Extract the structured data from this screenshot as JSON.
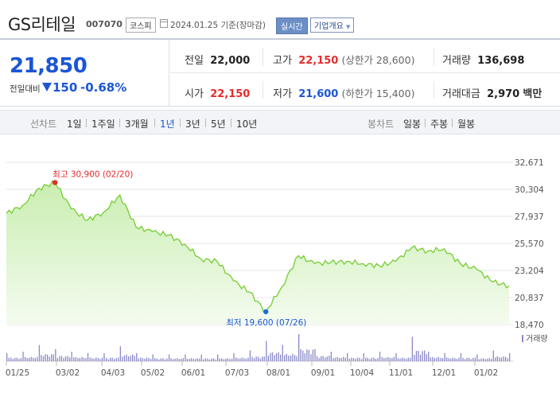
{
  "header": {
    "title": "GS리테일",
    "code": "007070",
    "market": "코스피",
    "as_of": "2024.01.25  기준(장마감)",
    "realtime_label": "실시간",
    "overview_label": "기업개요"
  },
  "price": {
    "current": "21,850",
    "change_label": "전일대비",
    "change_value": "150",
    "change_pct": "-0.68%",
    "prev_label": "전일",
    "prev": "22,000",
    "high_label": "고가",
    "high": "22,150",
    "upper_limit": "(상한가 28,600)",
    "volume_label": "거래량",
    "volume": "136,698",
    "open_label": "시가",
    "open": "22,150",
    "low_label": "저가",
    "low": "21,600",
    "lower_limit": "(하한가 15,400)",
    "amount_label": "거래대금",
    "amount": "2,970",
    "amount_unit": "백만"
  },
  "tabs": {
    "line_label": "선차트",
    "periods": [
      "1일",
      "1주일",
      "3개월",
      "1년",
      "3년",
      "5년",
      "10년"
    ],
    "selected": "1년",
    "candle_label": "봉차트",
    "candles": [
      "일봉",
      "주봉",
      "월봉"
    ]
  },
  "colors": {
    "accent_blue": "#1b55d6",
    "up_red": "#e52b2b",
    "line_green": "#7ccf3c",
    "area_green": "#d7f2c2"
  },
  "chart_data": {
    "type": "area",
    "x_ticks": [
      "01/25",
      "03/02",
      "04/03",
      "05/02",
      "06/01",
      "07/03",
      "08/01",
      "09/01",
      "10/04",
      "11/01",
      "12/01",
      "01/02"
    ],
    "y_ticks": [
      32671,
      30304,
      27937,
      25570,
      23204,
      20837,
      18470
    ],
    "ylim": [
      18470,
      32671
    ],
    "high_annotation": "최고 30,900 (02/20)",
    "low_annotation": "최저 19,600 (07/26)",
    "volume_label": "거래량",
    "x": [
      "01/25",
      "02/05",
      "02/14",
      "02/20",
      "03/02",
      "03/15",
      "03/28",
      "04/03",
      "04/10",
      "04/20",
      "05/02",
      "05/15",
      "06/01",
      "06/15",
      "07/03",
      "07/17",
      "07/26",
      "08/01",
      "08/05",
      "08/20",
      "09/01",
      "09/20",
      "10/04",
      "10/20",
      "11/01",
      "11/10",
      "11/25",
      "12/01",
      "12/15",
      "01/02",
      "01/15",
      "01/25"
    ],
    "values": [
      28200,
      28900,
      30400,
      30900,
      28600,
      27600,
      28300,
      29800,
      27000,
      26600,
      26300,
      25500,
      24200,
      24000,
      22300,
      21300,
      19600,
      21800,
      24500,
      23800,
      23900,
      24000,
      23800,
      23600,
      24000,
      25200,
      24900,
      25100,
      23800,
      23300,
      22200,
      21850
    ],
    "volume": [
      30,
      35,
      60,
      45,
      35,
      30,
      30,
      55,
      30,
      25,
      25,
      25,
      25,
      25,
      30,
      40,
      75,
      60,
      100,
      45,
      35,
      30,
      30,
      35,
      30,
      90,
      35,
      30,
      30,
      25,
      40,
      30
    ]
  }
}
